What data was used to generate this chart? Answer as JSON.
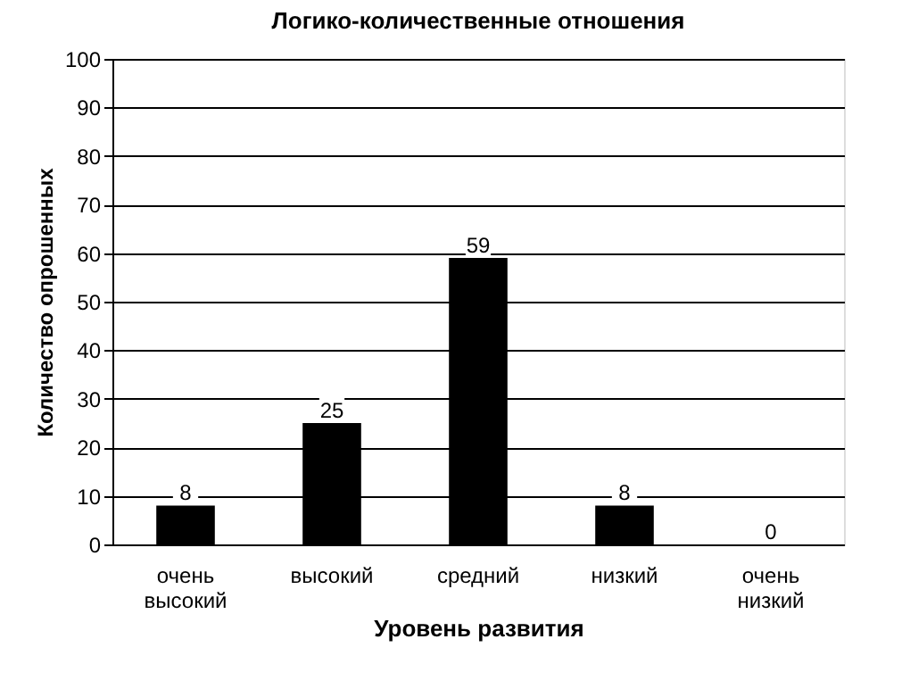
{
  "chart_data": {
    "type": "bar",
    "title": "Логико-количественные отношения",
    "xlabel": "Уровень развития",
    "ylabel": "Количество опрошенных",
    "categories": [
      "очень высокий",
      "высокий",
      "средний",
      "низкий",
      "очень низкий"
    ],
    "values": [
      8,
      25,
      59,
      8,
      0
    ],
    "color": "#000000",
    "ylim": [
      0,
      100
    ],
    "yticks": [
      0,
      10,
      20,
      30,
      40,
      50,
      60,
      70,
      80,
      90,
      100
    ],
    "grid": "y",
    "data_labels": true
  }
}
